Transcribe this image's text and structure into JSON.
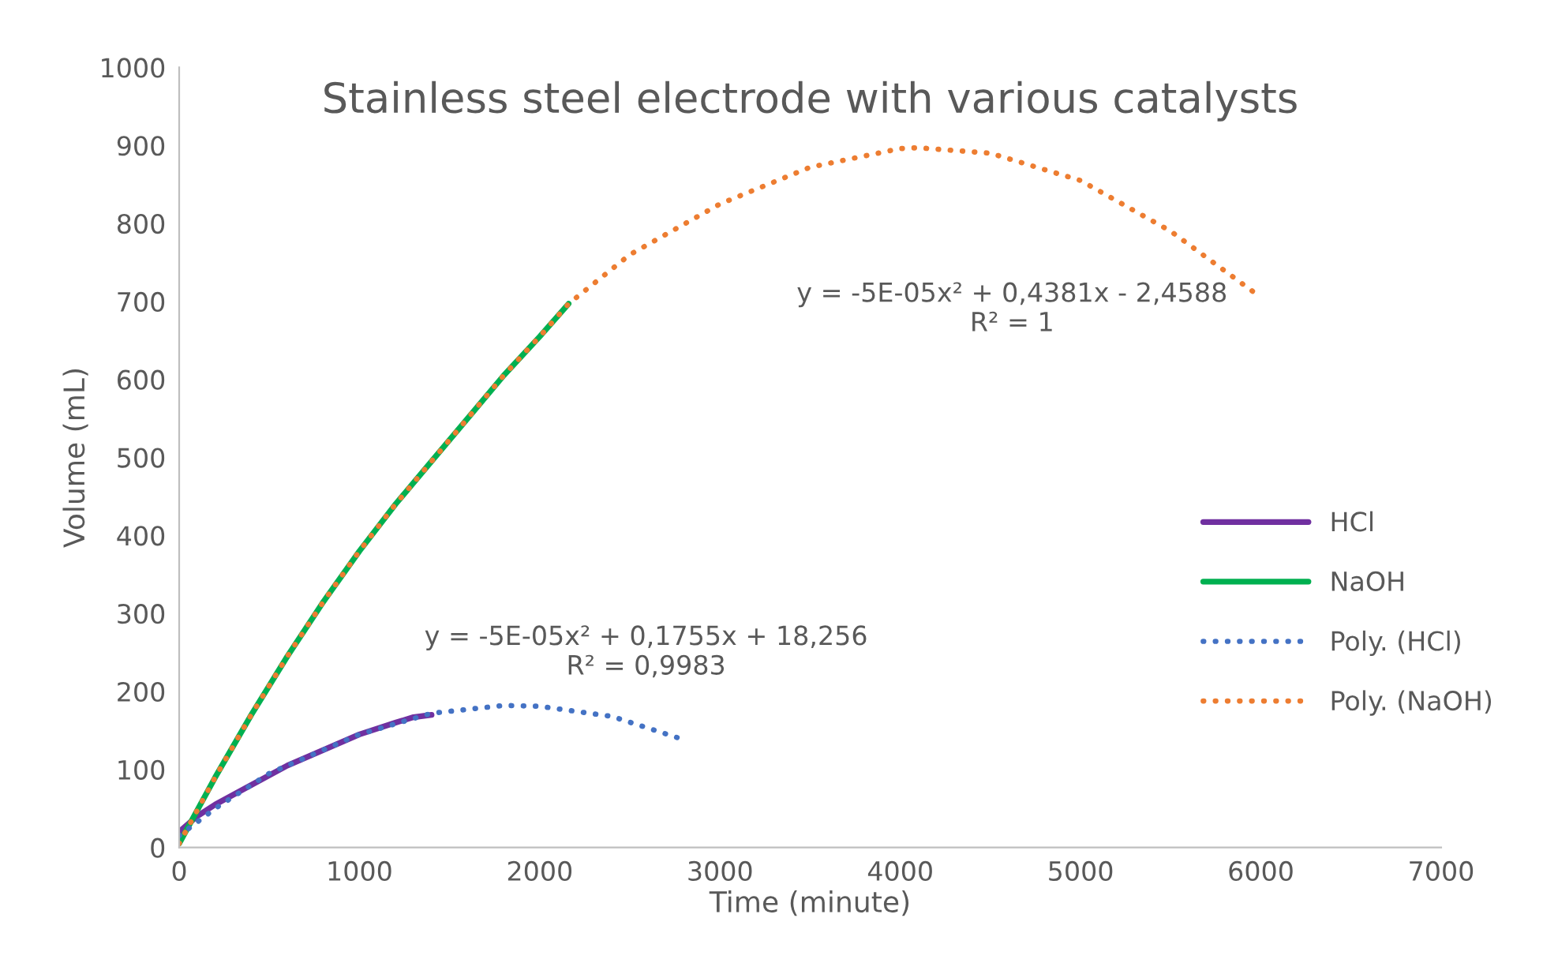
{
  "chart_data": {
    "type": "line",
    "title": "Stainless steel electrode with various catalysts",
    "xlabel": "Time (minute)",
    "ylabel": "Volume (mL)",
    "xlim": [
      0,
      7000
    ],
    "xticks": [
      0,
      1000,
      2000,
      3000,
      4000,
      5000,
      6000,
      7000
    ],
    "ylim": [
      0,
      1000
    ],
    "yticks": [
      0,
      100,
      200,
      300,
      400,
      500,
      600,
      700,
      800,
      900,
      1000
    ],
    "grid": false,
    "legend": "right",
    "line_style": "solid",
    "marker": "none",
    "series": [
      {
        "name": "HCl",
        "color": "#7030a0",
        "x": [
          0,
          100,
          200,
          400,
          600,
          800,
          1000,
          1200,
          1300,
          1400
        ],
        "values": [
          20,
          40,
          55,
          80,
          105,
          125,
          145,
          160,
          167,
          170
        ]
      },
      {
        "name": "NaOH",
        "color": "#00b050",
        "x": [
          0,
          200,
          400,
          600,
          800,
          1000,
          1200,
          1400,
          1600,
          1800,
          2000,
          2160
        ],
        "values": [
          5,
          90,
          170,
          245,
          315,
          380,
          440,
          495,
          550,
          605,
          655,
          697
        ]
      },
      {
        "name": "Poly. (HCl)",
        "color": "#4472c4",
        "line_style": "dotted",
        "x": [
          0,
          200,
          500,
          1000,
          1400,
          1800,
          2000,
          2400,
          2800
        ],
        "values": [
          15,
          50,
          95,
          145,
          172,
          182,
          181,
          168,
          138
        ]
      },
      {
        "name": "Poly. (NaOH)",
        "color": "#ed7d31",
        "line_style": "dotted",
        "x": [
          0,
          200,
          400,
          600,
          800,
          1000,
          1200,
          1400,
          1600,
          1800,
          2000,
          2160,
          2500,
          3000,
          3500,
          4000,
          4100,
          4500,
          5000,
          5500,
          5960
        ],
        "values": [
          5,
          90,
          170,
          245,
          315,
          380,
          440,
          495,
          550,
          605,
          655,
          697,
          760,
          825,
          872,
          896,
          897,
          890,
          855,
          790,
          712
        ]
      }
    ],
    "annotations": [
      "y = -5E-05x² + 0,4381x - 2,4588\nR² = 1",
      "y = -5E-05x² + 0,1755x + 18,256\nR² = 0,9983"
    ]
  }
}
